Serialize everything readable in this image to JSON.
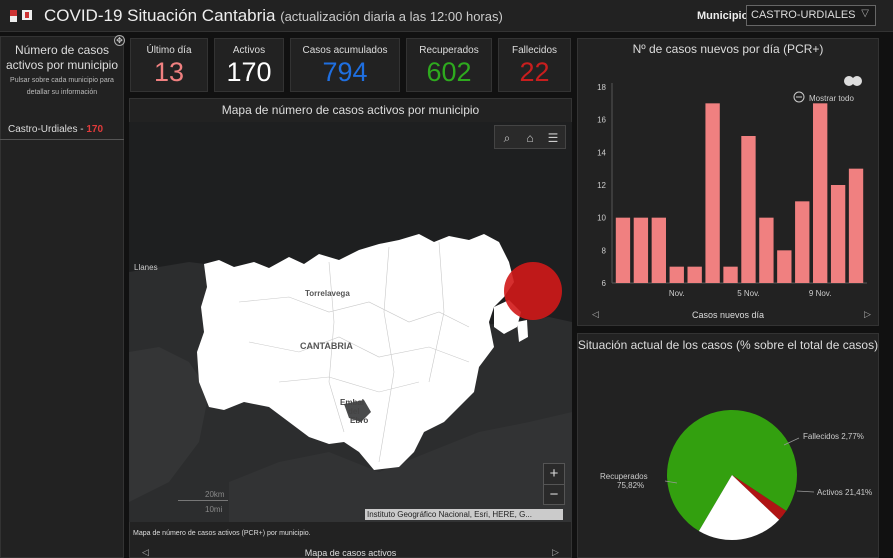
{
  "header": {
    "title": "COVID-19 Situación Cantabria",
    "subtitle": "(actualización diaria a las 12:00 horas)",
    "municipio_label": "Municipio",
    "municipio_value": "CASTRO-URDIALES"
  },
  "left_panel": {
    "title": "Número de casos activos por municipio",
    "subtitle": "Pulsar sobre cada municipio para detallar su información",
    "row_name": "Castro-Urdiales - ",
    "row_value": "170"
  },
  "cards": [
    {
      "label": "Último día",
      "value": "13",
      "color": "#f08080"
    },
    {
      "label": "Activos",
      "value": "170",
      "color": "#ffffff"
    },
    {
      "label": "Casos acumulados",
      "value": "794",
      "color": "#1f6fe0"
    },
    {
      "label": "Recuperados",
      "value": "602",
      "color": "#2eaa1e"
    },
    {
      "label": "Fallecidos",
      "value": "22",
      "color": "#c81e1e"
    }
  ],
  "map": {
    "title": "Mapa de número de casos activos por municipio",
    "labels": {
      "llanes": "Llanes",
      "torrelavega": "Torrelavega",
      "cantabria": "CANTABRIA",
      "embalse_1": "Embal",
      "embalse_2": "del",
      "embalse_3": "Ebro"
    },
    "zoom_in": "+",
    "zoom_out": "−",
    "scale_km": "20km",
    "scale_mi": "10mi",
    "attribution": "Instituto Geográfico Nacional, Esri, HERE, G...",
    "caption": "Mapa de número de casos activos (PCR+) por municipio.",
    "footer": "Mapa de casos activos",
    "bubble_color": "#d01818"
  },
  "chart_data": [
    {
      "type": "bar",
      "title": "Nº de casos nuevos por día (PCR+)",
      "xlabel": "Casos nuevos día",
      "ylabel": "",
      "x_ticks": [
        "Nov.",
        "5 Nov.",
        "9 Nov."
      ],
      "values": [
        10,
        10,
        10,
        7,
        7,
        17,
        7,
        15,
        10,
        8,
        11,
        17,
        12,
        13
      ],
      "ylim": [
        6,
        18
      ],
      "y_ticks": [
        6,
        8,
        10,
        12,
        14,
        16,
        18
      ],
      "color": "#f08080",
      "show_all": "Mostrar todo"
    },
    {
      "type": "pie",
      "title": "Situación actual de los casos (% sobre el total de casos)",
      "slices": [
        {
          "name": "Recuperados",
          "label": "Recuperados",
          "pct_label": "75,82%",
          "value": 75.82,
          "color": "#33a00f"
        },
        {
          "name": "Fallecidos",
          "label": "Fallecidos 2,77%",
          "value": 2.77,
          "color": "#b01414"
        },
        {
          "name": "Activos",
          "label": "Activos 21,41%",
          "value": 21.41,
          "color": "#ffffff"
        }
      ]
    }
  ]
}
